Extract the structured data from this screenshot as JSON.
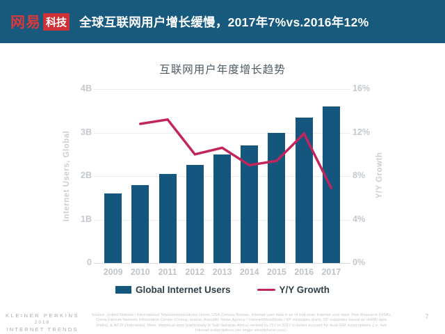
{
  "header": {
    "logo_brand": "网易",
    "logo_sub": "科技",
    "title": "全球互联网用户增长缓慢，2017年7%vs.2016年12%"
  },
  "chart": {
    "title": "互联网用户年度增长趋势",
    "left_axis": {
      "label": "Internet Users, Global",
      "ticks": [
        "4B",
        "3B",
        "2B",
        "1B",
        "0"
      ]
    },
    "right_axis": {
      "label": "Y/Y Growth",
      "ticks": [
        "16%",
        "12%",
        "8%",
        "4%",
        "0%"
      ]
    },
    "legend": [
      {
        "label": "Global Internet Users",
        "swatch": "bar"
      },
      {
        "label": "Y/Y Growth",
        "swatch": "line"
      }
    ]
  },
  "chart_data": {
    "type": "bar",
    "title": "互联网用户年度增长趋势",
    "categories": [
      "2009",
      "2010",
      "2011",
      "2012",
      "2013",
      "2014",
      "2015",
      "2016",
      "2017"
    ],
    "series": [
      {
        "name": "Global Internet Users",
        "type": "bar",
        "axis": "left",
        "unit": "B users",
        "color": "#15567e",
        "values": [
          1.6,
          1.8,
          2.05,
          2.25,
          2.5,
          2.7,
          3.0,
          3.35,
          3.6
        ]
      },
      {
        "name": "Y/Y Growth",
        "type": "line",
        "axis": "right",
        "unit": "%",
        "color": "#c2255c",
        "values": [
          null,
          12.8,
          13.2,
          10.0,
          10.6,
          9.0,
          9.4,
          11.9,
          6.9
        ]
      }
    ],
    "left_ylabel": "Internet Users, Global",
    "right_ylabel": "Y/Y Growth",
    "left_ylim": [
      0,
      4
    ],
    "right_ylim": [
      0,
      16
    ],
    "grid": true,
    "legend_position": "bottom"
  },
  "footer": {
    "kp_lines": [
      "KLEINER PERKINS",
      "2018",
      "INTERNET TRENDS"
    ],
    "source": "Source: United Nations / International Telecommunications Union, USA Census Bureau. Internet user data is as of mid-year. Internet user data: Pew Research (USA), China Internet Network Information Center (China), Islamic Republic News Agency / InternetWorldStats / KP estimates (Iran), KP estimates based on IAMAI data (India), & APJII (Indonesia). Note: Historical data (particularly in Sub-Saharan Africa) revised by ITU in 2017 to better account for dual-SIM subscriptions (i.e. two Internet subscriptions per single smartphone user).",
    "page_number": "7"
  }
}
